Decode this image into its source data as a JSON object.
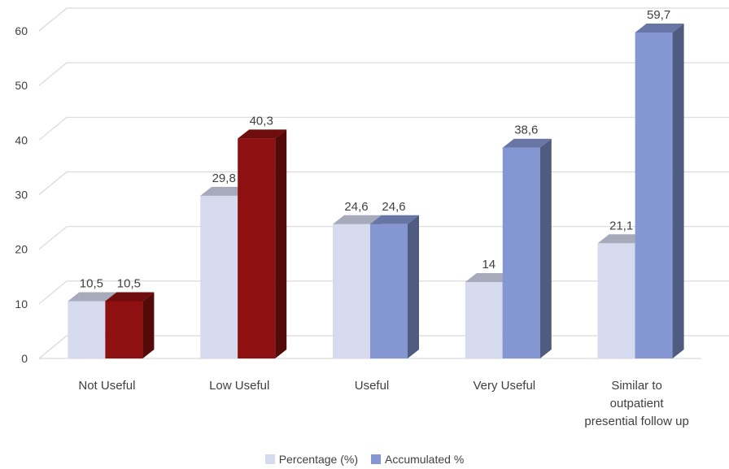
{
  "chart_data": {
    "type": "bar",
    "categories": [
      [
        "Not Useful"
      ],
      [
        "Low Useful"
      ],
      [
        "Useful"
      ],
      [
        "Very Useful"
      ],
      [
        "Similar to",
        "outpatient",
        "presential follow up"
      ]
    ],
    "series": [
      {
        "name": "Percentage (%)",
        "values": [
          10.5,
          29.8,
          24.6,
          14,
          21.1
        ],
        "labels": [
          "10,5",
          "29,8",
          "24,6",
          "14",
          "21,1"
        ]
      },
      {
        "name": "Accumulated %",
        "values": [
          10.5,
          40.3,
          24.6,
          38.6,
          59.7
        ],
        "labels": [
          "10,5",
          "40,3",
          "24,6",
          "38,6",
          "59,7"
        ]
      }
    ],
    "yticks": [
      "0",
      "10",
      "20",
      "30",
      "40",
      "50",
      "60"
    ],
    "ylim": [
      0,
      60
    ],
    "grid": true,
    "legend_position": "bottom",
    "colors": {
      "percentage": "#d6daee",
      "accumulated": "#8497d3",
      "accumulated_highlight": "#8e1010"
    }
  }
}
